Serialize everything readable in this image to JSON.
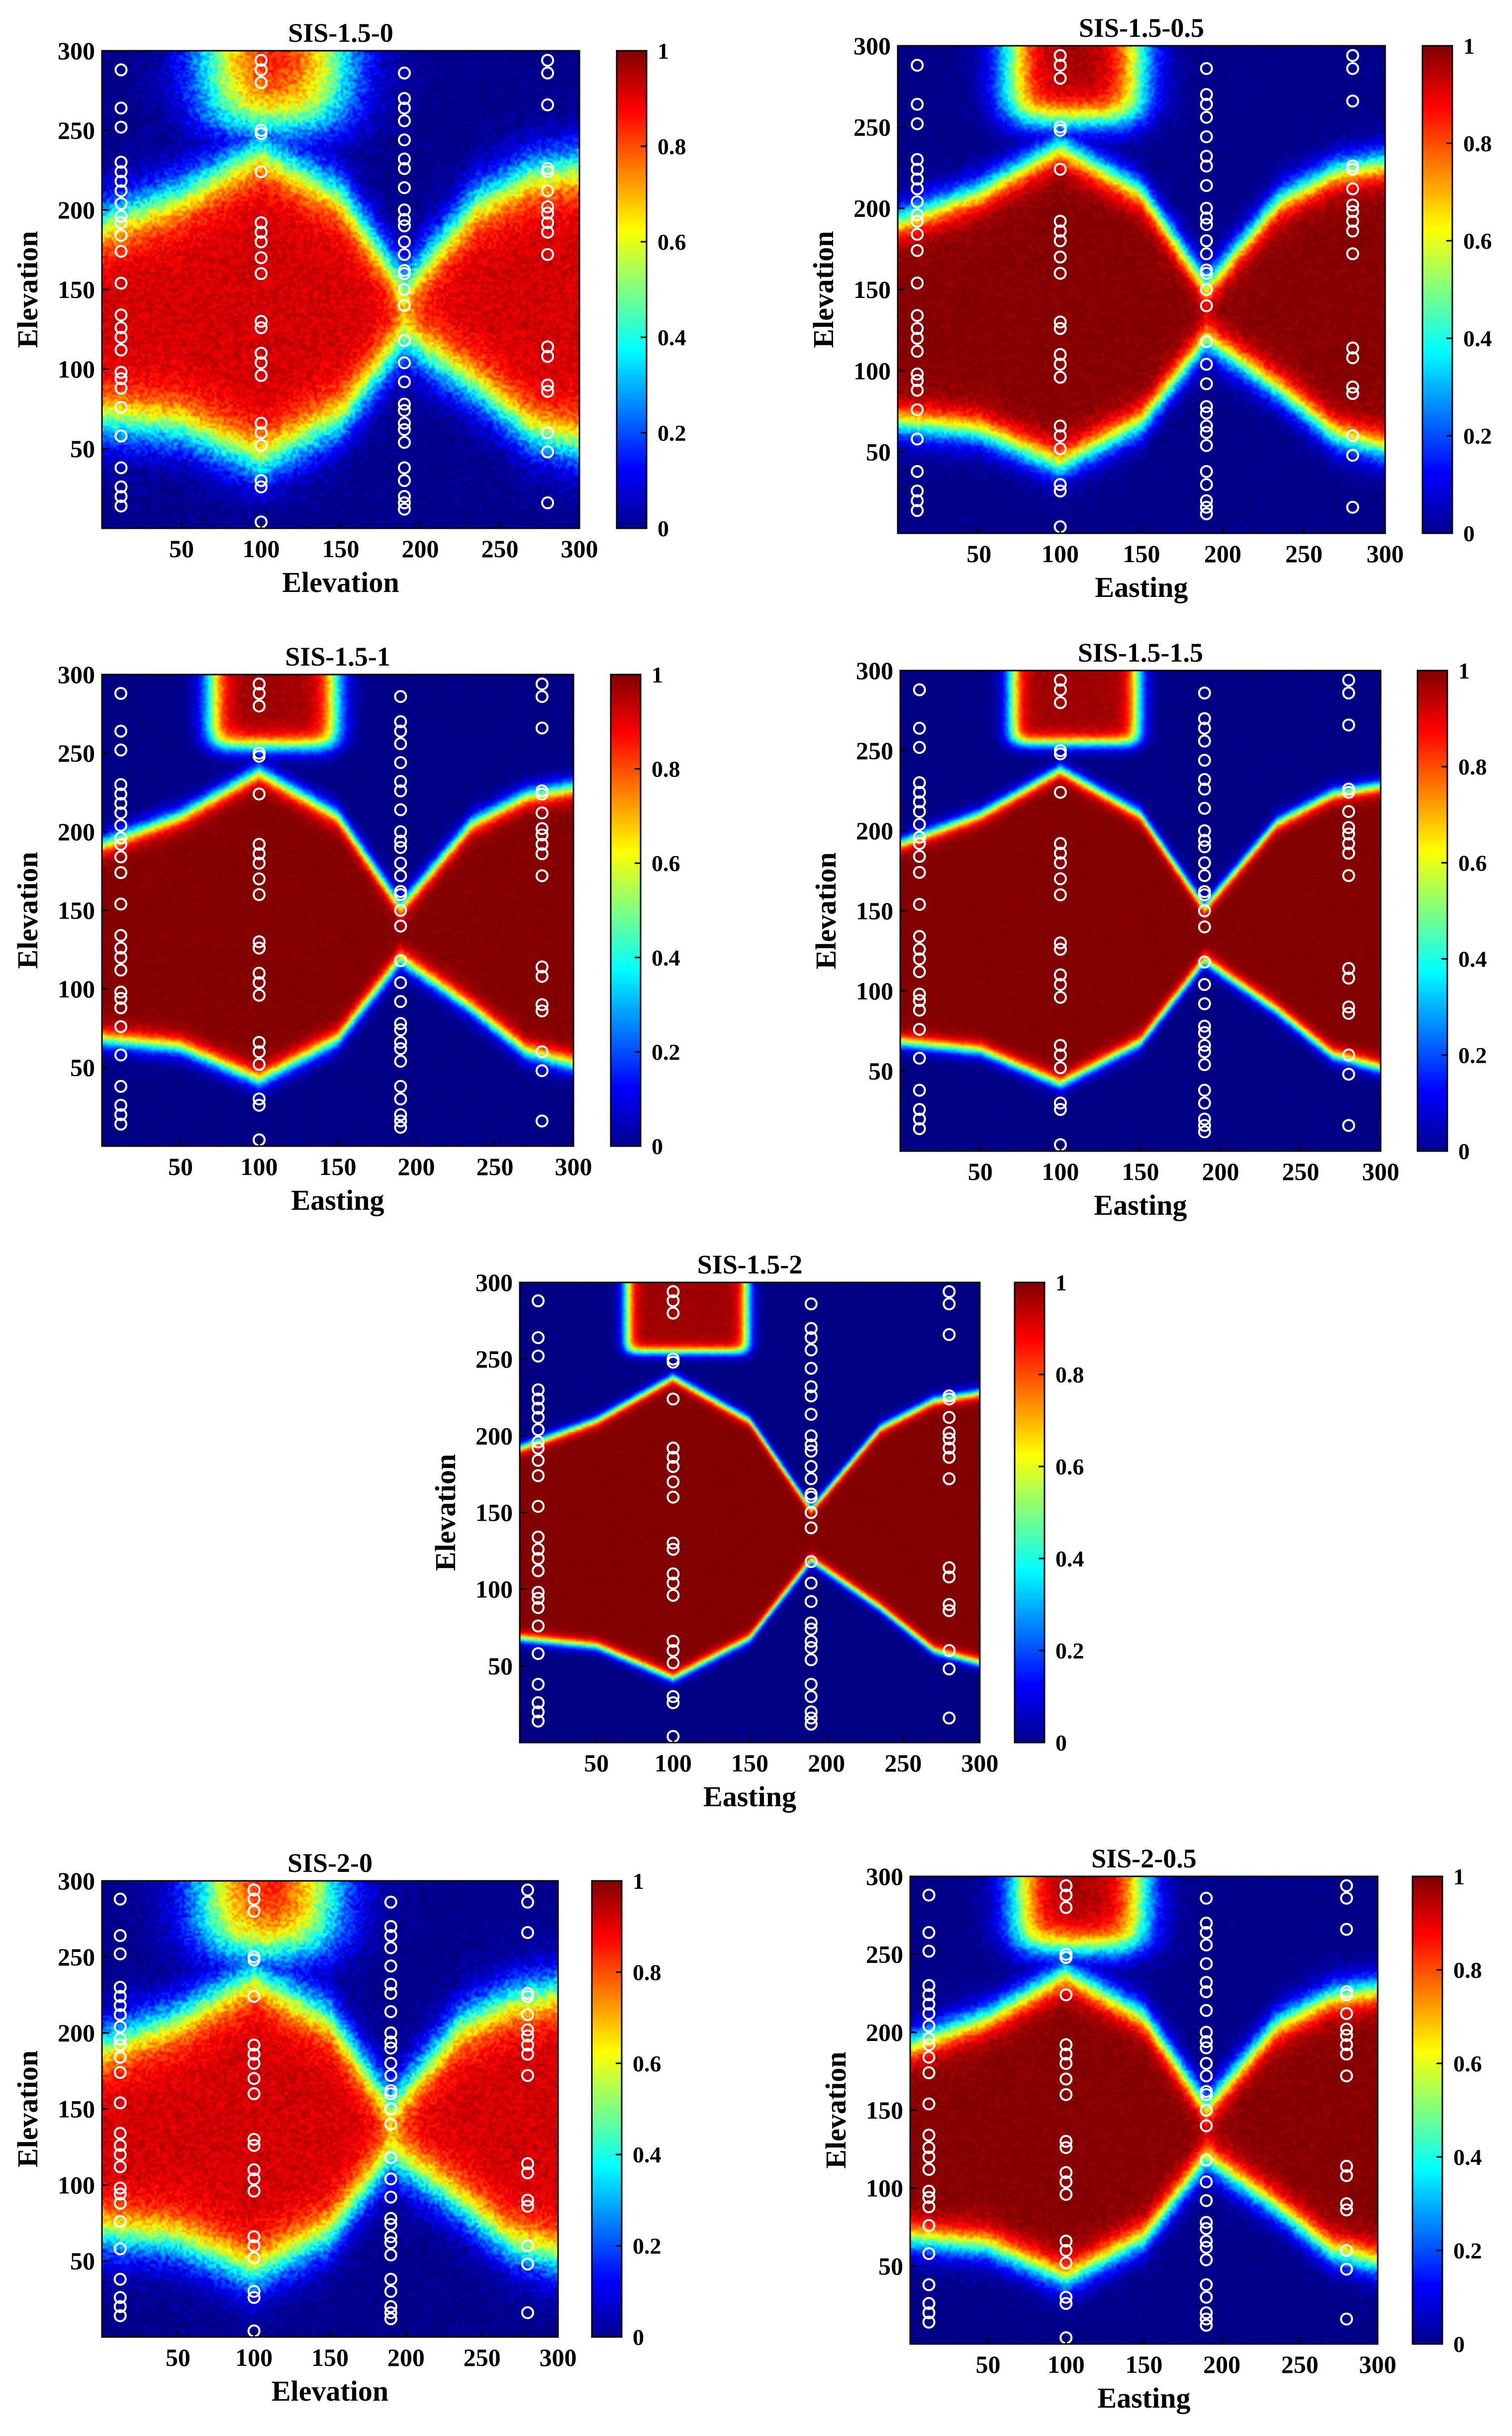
{
  "chart_data": [
    {
      "type": "heatmap",
      "title": "SIS-1.5-0",
      "xlabel": "Elevation",
      "ylabel": "Elevation",
      "xlim": [
        0,
        300
      ],
      "ylim": [
        0,
        300
      ],
      "xticks": [
        "50",
        "100",
        "150",
        "200",
        "250",
        "300"
      ],
      "yticks": [
        "50",
        "100",
        "150",
        "200",
        "250",
        "300"
      ],
      "colorbar": {
        "range": [
          0,
          1
        ],
        "ticks": [
          "0",
          "0.2",
          "0.4",
          "0.6",
          "0.8",
          "1"
        ]
      },
      "sharpness": 0.2,
      "max_value": 0.92
    },
    {
      "type": "heatmap",
      "title": "SIS-1.5-0.5",
      "xlabel": "Easting",
      "ylabel": "Elevation",
      "xlim": [
        0,
        300
      ],
      "ylim": [
        0,
        300
      ],
      "xticks": [
        "50",
        "100",
        "150",
        "200",
        "250",
        "300"
      ],
      "yticks": [
        "50",
        "100",
        "150",
        "200",
        "250",
        "300"
      ],
      "colorbar": {
        "range": [
          0,
          1
        ],
        "ticks": [
          "0",
          "0.2",
          "0.4",
          "0.6",
          "0.8",
          "1"
        ]
      },
      "sharpness": 0.5,
      "max_value": 1.0
    },
    {
      "type": "heatmap",
      "title": "SIS-1.5-1",
      "xlabel": "Easting",
      "ylabel": "Elevation",
      "xlim": [
        0,
        300
      ],
      "ylim": [
        0,
        300
      ],
      "xticks": [
        "50",
        "100",
        "150",
        "200",
        "250",
        "300"
      ],
      "yticks": [
        "50",
        "100",
        "150",
        "200",
        "250",
        "300"
      ],
      "colorbar": {
        "range": [
          0,
          1
        ],
        "ticks": [
          "0",
          "0.2",
          "0.4",
          "0.6",
          "0.8",
          "1"
        ]
      },
      "sharpness": 1.0,
      "max_value": 1.0
    },
    {
      "type": "heatmap",
      "title": "SIS-1.5-1.5",
      "xlabel": "Easting",
      "ylabel": "Elevation",
      "xlim": [
        0,
        300
      ],
      "ylim": [
        0,
        300
      ],
      "xticks": [
        "50",
        "100",
        "150",
        "200",
        "250",
        "300"
      ],
      "yticks": [
        "50",
        "100",
        "150",
        "200",
        "250",
        "300"
      ],
      "colorbar": {
        "range": [
          0,
          1
        ],
        "ticks": [
          "0",
          "0.2",
          "0.4",
          "0.6",
          "0.8",
          "1"
        ]
      },
      "sharpness": 1.5,
      "max_value": 1.0
    },
    {
      "type": "heatmap",
      "title": "SIS-1.5-2",
      "xlabel": "Easting",
      "ylabel": "Elevation",
      "xlim": [
        0,
        300
      ],
      "ylim": [
        0,
        300
      ],
      "xticks": [
        "50",
        "100",
        "150",
        "200",
        "250",
        "300"
      ],
      "yticks": [
        "50",
        "100",
        "150",
        "200",
        "250",
        "300"
      ],
      "colorbar": {
        "range": [
          0,
          1
        ],
        "ticks": [
          "0",
          "0.2",
          "0.4",
          "0.6",
          "0.8",
          "1"
        ]
      },
      "sharpness": 2.0,
      "max_value": 1.0
    },
    {
      "type": "heatmap",
      "title": "SIS-2-0",
      "xlabel": "Elevation",
      "ylabel": "Elevation",
      "xlim": [
        0,
        300
      ],
      "ylim": [
        0,
        300
      ],
      "xticks": [
        "50",
        "100",
        "150",
        "200",
        "250",
        "300"
      ],
      "yticks": [
        "50",
        "100",
        "150",
        "200",
        "250",
        "300"
      ],
      "colorbar": {
        "range": [
          0,
          1
        ],
        "ticks": [
          "0",
          "0.2",
          "0.4",
          "0.6",
          "0.8",
          "1"
        ]
      },
      "sharpness": 0.2,
      "max_value": 0.92
    },
    {
      "type": "heatmap",
      "title": "SIS-2-0.5",
      "xlabel": "Easting",
      "ylabel": "Elevation",
      "xlim": [
        0,
        300
      ],
      "ylim": [
        0,
        300
      ],
      "xticks": [
        "50",
        "100",
        "150",
        "200",
        "250",
        "300"
      ],
      "yticks": [
        "50",
        "100",
        "150",
        "200",
        "250",
        "300"
      ],
      "colorbar": {
        "range": [
          0,
          1
        ],
        "ticks": [
          "0",
          "0.2",
          "0.4",
          "0.6",
          "0.8",
          "1"
        ]
      },
      "sharpness": 0.5,
      "max_value": 1.0
    }
  ],
  "field": {
    "lower_boundary": [
      [
        0,
        68
      ],
      [
        50,
        63
      ],
      [
        100,
        42
      ],
      [
        150,
        68
      ],
      [
        190,
        119
      ],
      [
        235,
        88
      ],
      [
        270,
        60
      ],
      [
        300,
        52
      ]
    ],
    "upper_boundary": [
      [
        0,
        192
      ],
      [
        50,
        210
      ],
      [
        100,
        238
      ],
      [
        150,
        210
      ],
      [
        190,
        152
      ],
      [
        235,
        205
      ],
      [
        270,
        223
      ],
      [
        300,
        228
      ]
    ],
    "top_lens": {
      "x_range": [
        70,
        148
      ],
      "y_bottom": 255
    }
  },
  "wells": [
    {
      "x": 12,
      "y": [
        288,
        264,
        252,
        230,
        224,
        218,
        212,
        204,
        196,
        192,
        184,
        174,
        154,
        134,
        126,
        120,
        112,
        98,
        94,
        88,
        76,
        58,
        38,
        26,
        20,
        14
      ]
    },
    {
      "x": 100,
      "y": [
        294,
        288,
        280,
        250,
        248,
        224,
        192,
        186,
        180,
        170,
        160,
        130,
        126,
        110,
        104,
        96,
        66,
        60,
        52,
        30,
        26,
        4
      ]
    },
    {
      "x": 190,
      "y": [
        286,
        270,
        264,
        256,
        244,
        232,
        226,
        214,
        200,
        194,
        190,
        180,
        172,
        162,
        160,
        150,
        140,
        118,
        104,
        92,
        78,
        74,
        66,
        62,
        54,
        38,
        30,
        20,
        16,
        12
      ]
    },
    {
      "x": 280,
      "y": [
        294,
        286,
        266,
        226,
        224,
        212,
        202,
        198,
        192,
        186,
        172,
        114,
        108,
        90,
        86,
        60,
        48,
        16
      ]
    }
  ]
}
